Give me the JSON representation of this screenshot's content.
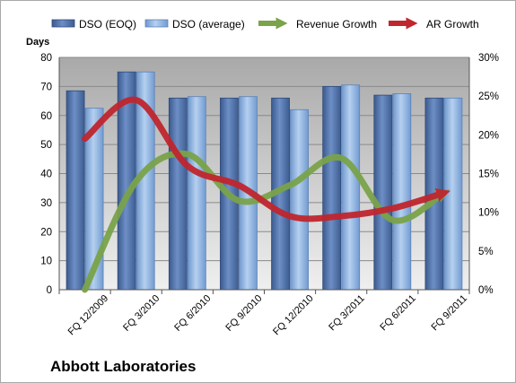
{
  "company_name": "Abbott Laboratories",
  "chart_data": {
    "type": "bar",
    "categories": [
      "FQ 12/2009",
      "FQ 3/2010",
      "FQ 6/2010",
      "FQ 9/2010",
      "FQ 12/2010",
      "FQ 3/2011",
      "FQ 6/2011",
      "FQ 9/2011"
    ],
    "ylabel": "Days",
    "ylim": [
      0,
      80
    ],
    "y_ticks": [
      "0",
      "10",
      "20",
      "30",
      "40",
      "50",
      "60",
      "70",
      "80"
    ],
    "y2lim": [
      0,
      30
    ],
    "y2_ticks": [
      "0%",
      "5%",
      "10%",
      "15%",
      "20%",
      "25%",
      "30%"
    ],
    "grid": true,
    "legend_position": "top",
    "series": [
      {
        "name": "DSO (EOQ)",
        "type": "bar",
        "axis": "left",
        "color": "#4f71a8",
        "values": [
          68.5,
          75,
          66,
          66,
          66,
          70,
          67,
          66
        ]
      },
      {
        "name": "DSO (average)",
        "type": "bar",
        "axis": "left",
        "color": "#8fb3df",
        "values": [
          62.5,
          75,
          66.5,
          66.5,
          62,
          70.5,
          67.5,
          66
        ]
      },
      {
        "name": "Revenue Growth",
        "type": "line",
        "axis": "right",
        "color": "#7aa34a",
        "values": [
          0,
          14,
          17.5,
          11.5,
          13.5,
          17,
          9,
          12.5
        ]
      },
      {
        "name": "AR Growth",
        "type": "line",
        "axis": "right",
        "color": "#c0262e",
        "values": [
          19.5,
          24.5,
          16,
          13.5,
          9.5,
          9.5,
          10.5,
          12.5
        ]
      }
    ]
  }
}
